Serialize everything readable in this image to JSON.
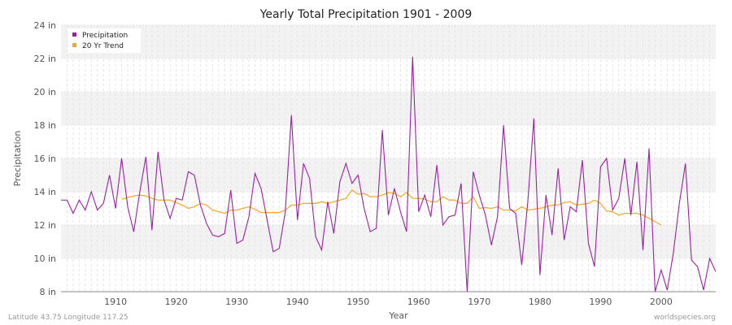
{
  "chart_data": {
    "type": "line",
    "title": "Yearly Total Precipitation 1901 - 2009",
    "xlabel": "Year",
    "ylabel": "Precipitation",
    "xlim": [
      1901,
      2009
    ],
    "ylim": [
      8,
      24
    ],
    "x_ticks": [
      1910,
      1920,
      1930,
      1940,
      1950,
      1960,
      1970,
      1980,
      1990,
      2000
    ],
    "y_ticks": [
      {
        "value": 8,
        "label": "8 in"
      },
      {
        "value": 10,
        "label": "10 in"
      },
      {
        "value": 12,
        "label": "12 in"
      },
      {
        "value": 14,
        "label": "14 in"
      },
      {
        "value": 16,
        "label": "16 in"
      },
      {
        "value": 18,
        "label": "18 in"
      },
      {
        "value": 20,
        "label": "20 in"
      },
      {
        "value": 22,
        "label": "22 in"
      },
      {
        "value": 24,
        "label": "24 in"
      }
    ],
    "legend_position": "top-left",
    "series": [
      {
        "name": "Precipitation",
        "color": "#9b1fa3",
        "start_year": 1901,
        "values": [
          13.5,
          13.5,
          12.7,
          13.5,
          12.9,
          14.0,
          12.9,
          13.3,
          15.0,
          13.0,
          16.0,
          13.1,
          11.6,
          14.0,
          16.1,
          11.7,
          16.4,
          13.5,
          12.4,
          13.6,
          13.5,
          15.2,
          15.0,
          13.2,
          12.1,
          11.4,
          11.3,
          11.5,
          14.1,
          10.9,
          11.1,
          12.5,
          15.1,
          14.2,
          12.3,
          10.4,
          10.6,
          12.8,
          18.6,
          12.3,
          15.7,
          14.8,
          11.3,
          10.5,
          13.4,
          11.5,
          14.6,
          15.7,
          14.5,
          15.0,
          13.0,
          11.6,
          11.8,
          17.7,
          12.6,
          14.2,
          12.8,
          11.6,
          22.1,
          12.8,
          13.8,
          12.5,
          15.6,
          12.0,
          12.5,
          12.6,
          14.5,
          8.0,
          15.2,
          13.8,
          12.6,
          10.8,
          12.5,
          18.0,
          13.0,
          12.7,
          9.6,
          13.4,
          18.4,
          9.0,
          13.8,
          11.4,
          15.4,
          11.1,
          13.1,
          12.8,
          15.9,
          10.9,
          9.5,
          15.5,
          16.0,
          12.9,
          13.6,
          16.0,
          12.6,
          15.8,
          10.5,
          16.6,
          8.0,
          9.3,
          8.1,
          10.3,
          13.3,
          15.7,
          9.9,
          9.5,
          8.1,
          10.0,
          9.2
        ]
      },
      {
        "name": "20 Yr Trend",
        "color": "#f5a623",
        "start_year": 1911,
        "values": [
          13.55,
          13.65,
          13.75,
          13.8,
          13.75,
          13.6,
          13.5,
          13.5,
          13.5,
          13.35,
          13.2,
          13.0,
          13.1,
          13.3,
          13.2,
          12.9,
          12.8,
          12.7,
          12.9,
          12.9,
          13.0,
          13.1,
          12.95,
          12.75,
          12.75,
          12.75,
          12.75,
          12.9,
          13.2,
          13.2,
          13.3,
          13.3,
          13.3,
          13.4,
          13.3,
          13.4,
          13.5,
          13.6,
          14.1,
          13.85,
          13.9,
          13.7,
          13.7,
          13.8,
          13.95,
          13.9,
          13.7,
          13.95,
          13.6,
          13.6,
          13.55,
          13.4,
          13.4,
          13.7,
          13.5,
          13.5,
          13.3,
          13.3,
          13.7,
          13.0,
          13.05,
          13.0,
          13.1,
          12.9,
          12.9,
          12.85,
          13.1,
          12.9,
          12.95,
          13.0,
          13.1,
          13.2,
          13.2,
          13.35,
          13.4,
          13.2,
          13.25,
          13.3,
          13.5,
          13.3,
          12.85,
          12.8,
          12.6,
          12.7,
          12.7,
          12.7,
          12.6,
          12.4,
          12.2,
          12.0
        ]
      }
    ]
  },
  "footer": {
    "location": "Latitude 43.75 Longitude 117.25",
    "source": "worldspecies.org"
  }
}
